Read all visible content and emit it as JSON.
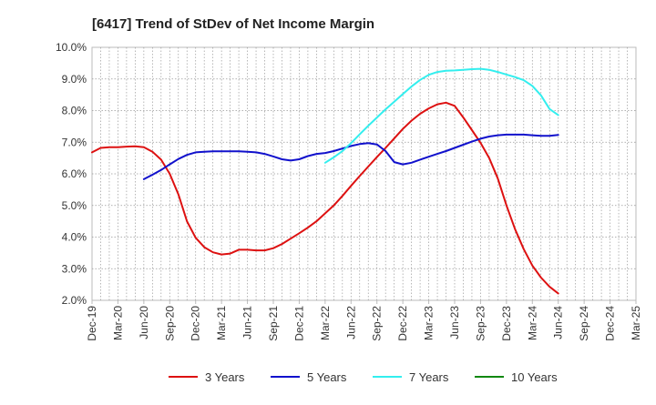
{
  "chart_data": {
    "type": "line",
    "title": "[6417]  Trend of StDev of Net Income Margin",
    "xlabel": "",
    "ylabel": "",
    "ylim": [
      2.0,
      10.0
    ],
    "y_ticks": [
      "2.0%",
      "3.0%",
      "4.0%",
      "5.0%",
      "6.0%",
      "7.0%",
      "8.0%",
      "9.0%",
      "10.0%"
    ],
    "x_ticks": [
      "Dec-19",
      "Mar-20",
      "Jun-20",
      "Sep-20",
      "Dec-20",
      "Mar-21",
      "Jun-21",
      "Sep-21",
      "Dec-21",
      "Mar-22",
      "Jun-22",
      "Sep-22",
      "Dec-22",
      "Mar-23",
      "Jun-23",
      "Sep-23",
      "Dec-23",
      "Mar-24",
      "Jun-24",
      "Sep-24",
      "Dec-24",
      "Mar-25"
    ],
    "grid": true,
    "legend_placement": "bottom",
    "series": [
      {
        "name": "3 Years",
        "color": "#dd1111",
        "points": [
          [
            0,
            6.68
          ],
          [
            1,
            6.82
          ],
          [
            2,
            6.84
          ],
          [
            3,
            6.84
          ],
          [
            4,
            6.86
          ],
          [
            5,
            6.87
          ],
          [
            6,
            6.84
          ],
          [
            7,
            6.7
          ],
          [
            8,
            6.45
          ],
          [
            9,
            6.0
          ],
          [
            10,
            5.35
          ],
          [
            11,
            4.5
          ],
          [
            12,
            3.98
          ],
          [
            13,
            3.68
          ],
          [
            14,
            3.52
          ],
          [
            15,
            3.45
          ],
          [
            16,
            3.48
          ],
          [
            17,
            3.6
          ],
          [
            18,
            3.6
          ],
          [
            19,
            3.58
          ],
          [
            20,
            3.58
          ],
          [
            21,
            3.65
          ],
          [
            22,
            3.78
          ],
          [
            23,
            3.95
          ],
          [
            24,
            4.12
          ],
          [
            25,
            4.3
          ],
          [
            26,
            4.5
          ],
          [
            27,
            4.75
          ],
          [
            28,
            5.0
          ],
          [
            29,
            5.3
          ],
          [
            30,
            5.62
          ],
          [
            31,
            5.93
          ],
          [
            32,
            6.23
          ],
          [
            33,
            6.53
          ],
          [
            34,
            6.82
          ],
          [
            35,
            7.12
          ],
          [
            36,
            7.42
          ],
          [
            37,
            7.68
          ],
          [
            38,
            7.9
          ],
          [
            39,
            8.07
          ],
          [
            40,
            8.2
          ],
          [
            41,
            8.25
          ],
          [
            42,
            8.15
          ],
          [
            43,
            7.78
          ],
          [
            44,
            7.38
          ],
          [
            45,
            6.98
          ],
          [
            46,
            6.5
          ],
          [
            47,
            5.85
          ],
          [
            48,
            5.0
          ],
          [
            49,
            4.25
          ],
          [
            50,
            3.62
          ],
          [
            51,
            3.1
          ],
          [
            52,
            2.72
          ],
          [
            53,
            2.43
          ],
          [
            54,
            2.22
          ]
        ]
      },
      {
        "name": "5 Years",
        "color": "#1111cc",
        "points": [
          [
            6,
            5.83
          ],
          [
            7,
            5.97
          ],
          [
            8,
            6.12
          ],
          [
            9,
            6.3
          ],
          [
            10,
            6.47
          ],
          [
            11,
            6.6
          ],
          [
            12,
            6.68
          ],
          [
            13,
            6.7
          ],
          [
            14,
            6.71
          ],
          [
            15,
            6.71
          ],
          [
            16,
            6.71
          ],
          [
            17,
            6.71
          ],
          [
            18,
            6.7
          ],
          [
            19,
            6.68
          ],
          [
            20,
            6.63
          ],
          [
            21,
            6.55
          ],
          [
            22,
            6.46
          ],
          [
            23,
            6.42
          ],
          [
            24,
            6.46
          ],
          [
            25,
            6.56
          ],
          [
            26,
            6.63
          ],
          [
            27,
            6.66
          ],
          [
            28,
            6.72
          ],
          [
            29,
            6.8
          ],
          [
            30,
            6.88
          ],
          [
            31,
            6.94
          ],
          [
            32,
            6.97
          ],
          [
            33,
            6.93
          ],
          [
            34,
            6.72
          ],
          [
            35,
            6.37
          ],
          [
            36,
            6.3
          ],
          [
            37,
            6.35
          ],
          [
            38,
            6.45
          ],
          [
            39,
            6.54
          ],
          [
            40,
            6.63
          ],
          [
            41,
            6.72
          ],
          [
            42,
            6.82
          ],
          [
            43,
            6.92
          ],
          [
            44,
            7.02
          ],
          [
            45,
            7.11
          ],
          [
            46,
            7.18
          ],
          [
            47,
            7.22
          ],
          [
            48,
            7.24
          ],
          [
            49,
            7.24
          ],
          [
            50,
            7.24
          ],
          [
            51,
            7.22
          ],
          [
            52,
            7.2
          ],
          [
            53,
            7.2
          ],
          [
            54,
            7.23
          ]
        ]
      },
      {
        "name": "7 Years",
        "color": "#33eeee",
        "points": [
          [
            27,
            6.35
          ],
          [
            28,
            6.52
          ],
          [
            29,
            6.72
          ],
          [
            30,
            6.97
          ],
          [
            31,
            7.25
          ],
          [
            32,
            7.52
          ],
          [
            33,
            7.78
          ],
          [
            34,
            8.04
          ],
          [
            35,
            8.28
          ],
          [
            36,
            8.52
          ],
          [
            37,
            8.76
          ],
          [
            38,
            8.97
          ],
          [
            39,
            9.13
          ],
          [
            40,
            9.22
          ],
          [
            41,
            9.26
          ],
          [
            42,
            9.27
          ],
          [
            43,
            9.29
          ],
          [
            44,
            9.31
          ],
          [
            45,
            9.32
          ],
          [
            46,
            9.29
          ],
          [
            47,
            9.22
          ],
          [
            48,
            9.14
          ],
          [
            49,
            9.06
          ],
          [
            50,
            8.96
          ],
          [
            51,
            8.78
          ],
          [
            52,
            8.48
          ],
          [
            53,
            8.05
          ],
          [
            54,
            7.86
          ]
        ]
      },
      {
        "name": "10 Years",
        "color": "#118811",
        "points": []
      }
    ]
  }
}
